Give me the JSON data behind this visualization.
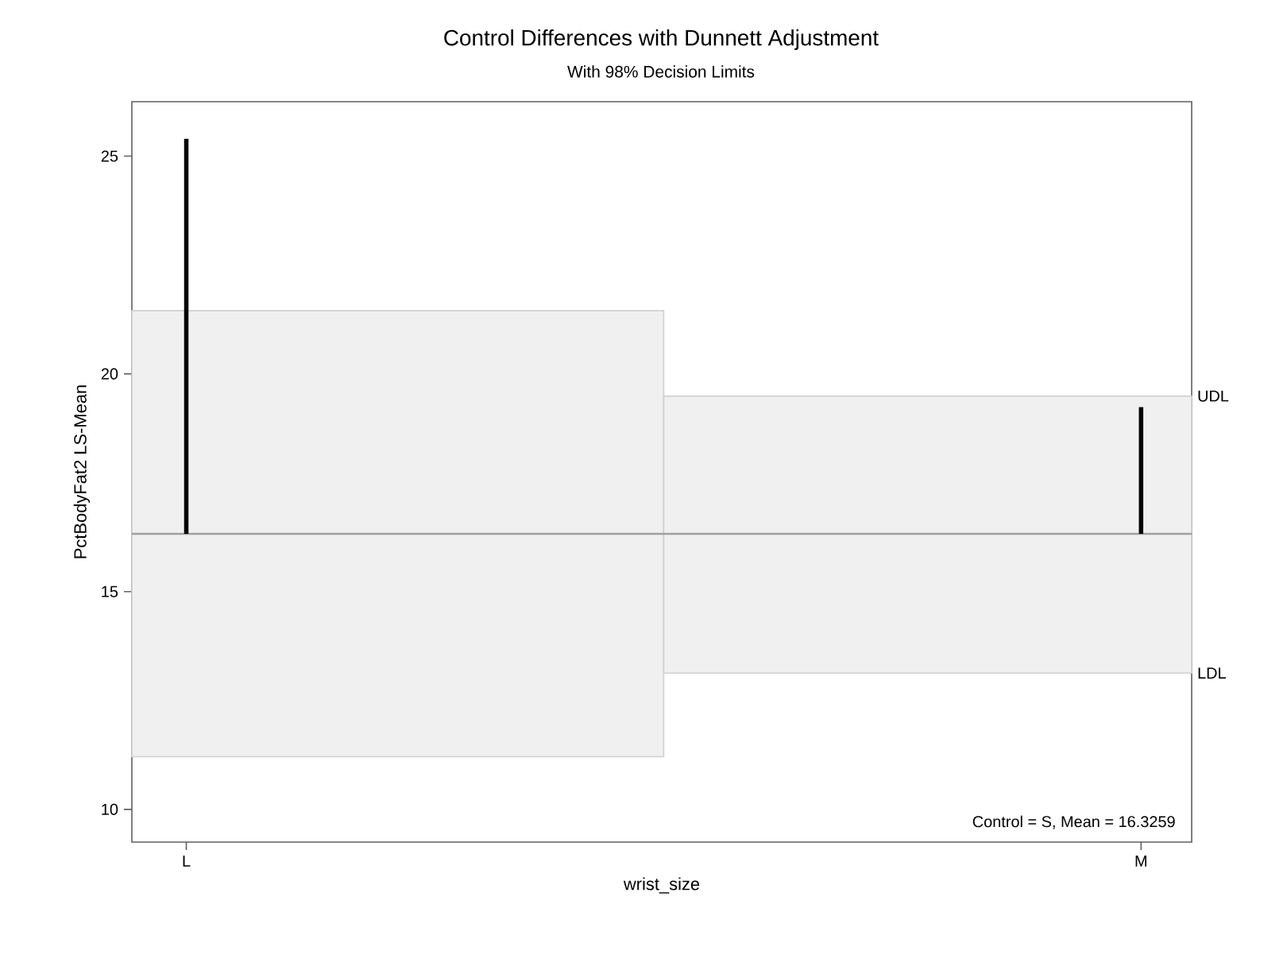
{
  "chart_data": {
    "type": "bar",
    "title": "Control Differences with Dunnett Adjustment",
    "subtitle": "With 98% Decision Limits",
    "xlabel": "wrist_size",
    "ylabel": "PctBodyFat2 LS-Mean",
    "categories": [
      "L",
      "M"
    ],
    "series": [
      {
        "color": "#f0f0f0",
        "base": [
          11.21,
          13.13
        ],
        "values": [
          10.24,
          6.36
        ]
      },
      {
        "color": "#000000",
        "base": [
          16.3259,
          16.3259
        ],
        "values": [
          9.07,
          2.91
        ]
      }
    ],
    "ylim": [
      9.25,
      26.25
    ],
    "yticks": [
      10,
      15,
      20,
      25
    ],
    "ref_lines": [
      {
        "axis": "y",
        "value": 16.3259,
        "color": "#a0a0a0"
      }
    ],
    "annotations": [
      "Control = S, Mean = 16.3259",
      "UDL",
      "LDL"
    ],
    "grid": false
  }
}
